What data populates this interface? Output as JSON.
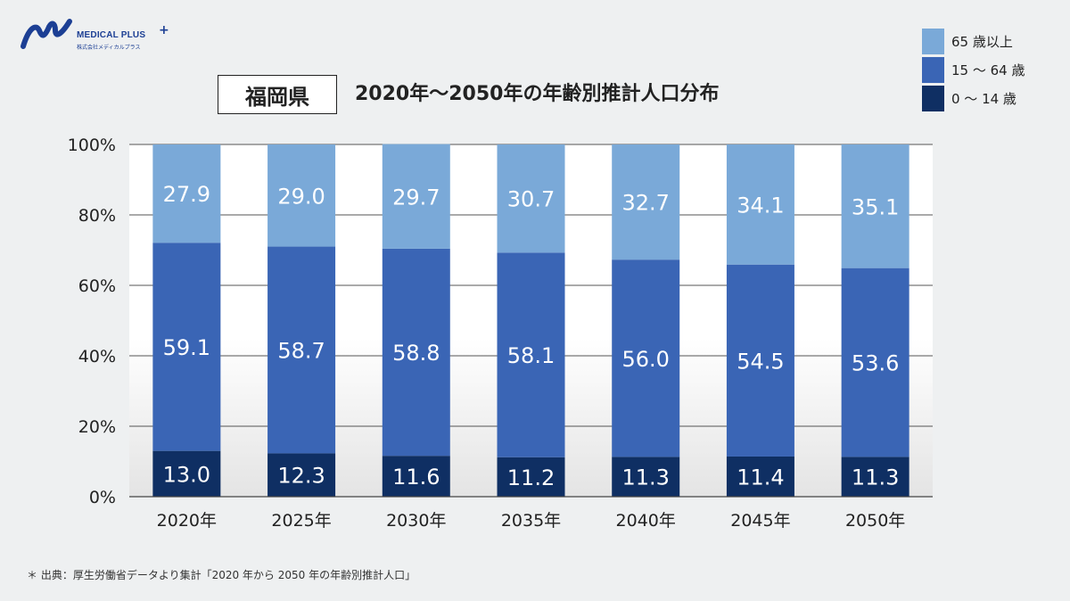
{
  "logo": {
    "name": "MEDICAL PLUS",
    "plus": "+",
    "sub": "株式会社メディカルプラス"
  },
  "header": {
    "prefecture": "福岡県",
    "title": "2020年～2050年の年齢別推計人口分布"
  },
  "legend": [
    {
      "label": "65 歳以上",
      "color": "#7aa9d8"
    },
    {
      "label": "15 ～ 64 歳",
      "color": "#3a65b5"
    },
    {
      "label": "0 ～ 14 歳",
      "color": "#0f2f63"
    }
  ],
  "chart_data": {
    "type": "bar",
    "stacked": true,
    "categories": [
      "2020年",
      "2025年",
      "2030年",
      "2035年",
      "2040年",
      "2045年",
      "2050年"
    ],
    "series": [
      {
        "name": "0 ～ 14 歳",
        "values": [
          13.0,
          12.3,
          11.6,
          11.2,
          11.3,
          11.4,
          11.3
        ],
        "labels": [
          "13.0",
          "12.3",
          "11.6",
          "11.2",
          "11.3",
          "11.4",
          "11.3"
        ],
        "color": "#0f2f63"
      },
      {
        "name": "15 ～ 64 歳",
        "values": [
          59.1,
          58.7,
          58.8,
          58.1,
          56.0,
          54.5,
          53.6
        ],
        "labels": [
          "59.1",
          "58.7",
          "58.8",
          "58.1",
          "56.0",
          "54.5",
          "53.6"
        ],
        "color": "#3a65b5"
      },
      {
        "name": "65 歳以上",
        "values": [
          27.9,
          29.0,
          29.7,
          30.7,
          32.7,
          34.1,
          35.1
        ],
        "labels": [
          "27.9",
          "29.0",
          "29.7",
          "30.7",
          "32.7",
          "34.1",
          "35.1"
        ],
        "color": "#7aa9d8"
      }
    ],
    "yticks": [
      "0%",
      "20%",
      "40%",
      "60%",
      "80%",
      "100%"
    ],
    "ylim": [
      0,
      100
    ],
    "grid": true,
    "legend_position": "top-right"
  },
  "footnote": "＊ 出典：厚生労働省データより集計「2020 年から 2050 年の年齢別推計人口」"
}
